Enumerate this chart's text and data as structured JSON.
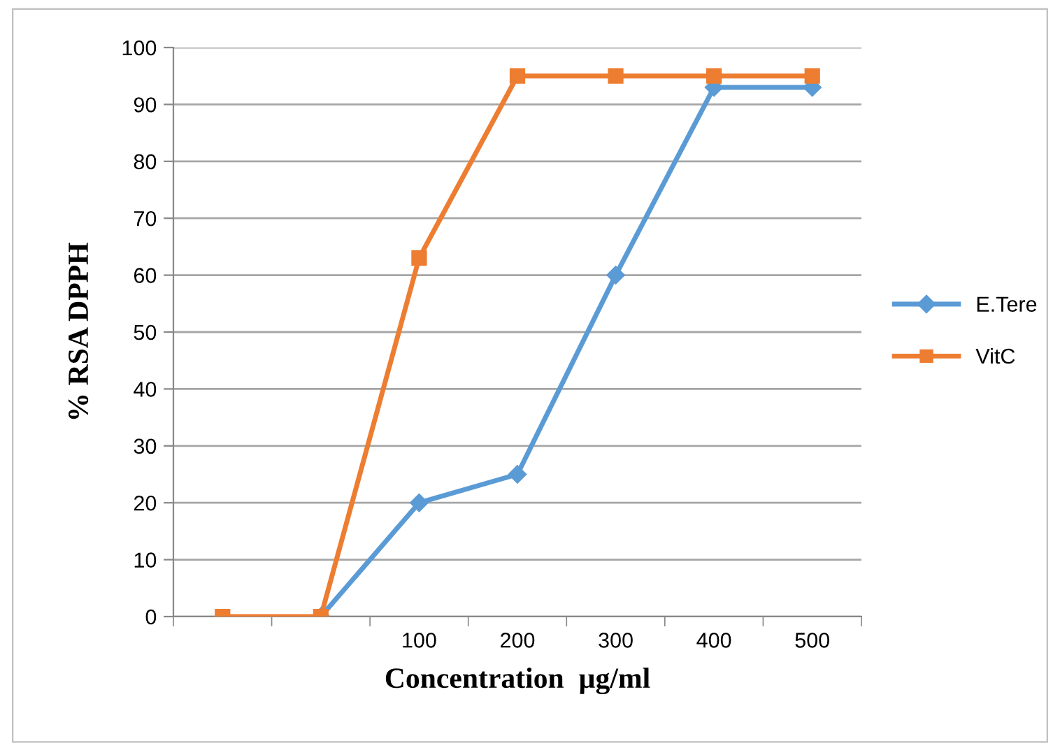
{
  "chart_data": {
    "type": "line",
    "xlabel": "Concentration  µg/ml",
    "ylabel": "% RSA DPPH",
    "categories": [
      null,
      null,
      "100",
      "200",
      "300",
      "400",
      "500"
    ],
    "series": [
      {
        "name": "E.Tere",
        "color": "#5b9bd5",
        "marker": "diamond",
        "values": [
          null,
          0,
          20,
          25,
          60,
          93,
          93
        ]
      },
      {
        "name": "VitC",
        "color": "#ed7d31",
        "marker": "square",
        "values": [
          0,
          0,
          63,
          95,
          95,
          95,
          95
        ]
      }
    ],
    "ylim": [
      0,
      100
    ],
    "yticks": [
      0,
      10,
      20,
      30,
      40,
      50,
      60,
      70,
      80,
      90,
      100
    ],
    "grid": "y",
    "legend": "right",
    "line_style": "solid"
  }
}
